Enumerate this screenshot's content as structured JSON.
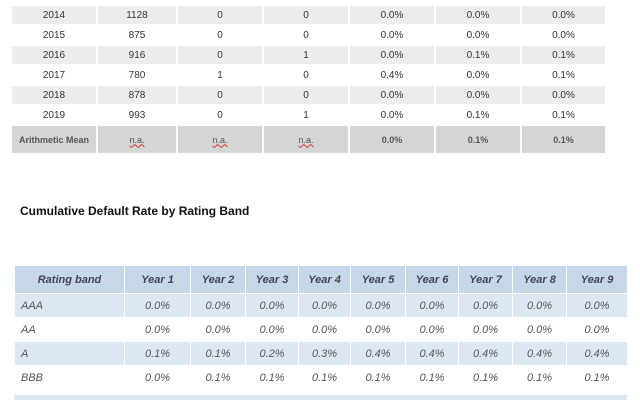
{
  "top_table": {
    "rows": [
      [
        "2014",
        "1128",
        "0",
        "0",
        "0.0%",
        "0.0%",
        "0.0%"
      ],
      [
        "2015",
        "875",
        "0",
        "0",
        "0.0%",
        "0.0%",
        "0.0%"
      ],
      [
        "2016",
        "916",
        "0",
        "1",
        "0.0%",
        "0.1%",
        "0.1%"
      ],
      [
        "2017",
        "780",
        "1",
        "0",
        "0.4%",
        "0.0%",
        "0.1%"
      ],
      [
        "2018",
        "878",
        "0",
        "0",
        "0.0%",
        "0.0%",
        "0.0%"
      ],
      [
        "2019",
        "993",
        "0",
        "1",
        "0.0%",
        "0.1%",
        "0.1%"
      ]
    ],
    "mean_row": [
      "Arithmetic Mean",
      "n.a.",
      "n.a.",
      "n.a.",
      "0.0%",
      "0.1%",
      "0.1%"
    ]
  },
  "heading": "Cumulative Default Rate by Rating Band",
  "rating_table": {
    "header": [
      "Rating band",
      "Year 1",
      "Year 2",
      "Year 3",
      "Year 4",
      "Year 5",
      "Year 6",
      "Year 7",
      "Year 8",
      "Year 9"
    ],
    "rows": [
      [
        "AAA",
        "0.0%",
        "0.0%",
        "0.0%",
        "0.0%",
        "0.0%",
        "0.0%",
        "0.0%",
        "0.0%",
        "0.0%"
      ],
      [
        "AA",
        "0.0%",
        "0.0%",
        "0.0%",
        "0.0%",
        "0.0%",
        "0.0%",
        "0.0%",
        "0.0%",
        "0.0%"
      ],
      [
        "A",
        "0.1%",
        "0.1%",
        "0.2%",
        "0.3%",
        "0.4%",
        "0.4%",
        "0.4%",
        "0.4%",
        "0.4%"
      ],
      [
        "BBB",
        "0.0%",
        "0.1%",
        "0.1%",
        "0.1%",
        "0.1%",
        "0.1%",
        "0.1%",
        "0.1%",
        "0.1%"
      ]
    ]
  }
}
